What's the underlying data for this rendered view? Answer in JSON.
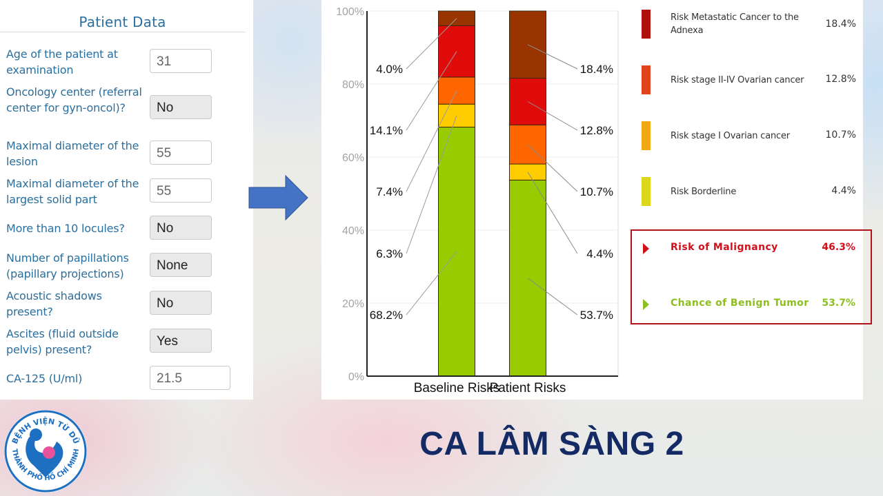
{
  "patient_data": {
    "title": "Patient Data",
    "fields": [
      {
        "label": "Age of the patient at examination",
        "value": "31",
        "kind": "input"
      },
      {
        "label": "Oncology center (referral center for gyn-oncol)?",
        "value": "No",
        "kind": "select"
      },
      {
        "label": "Maximal diameter of the lesion",
        "value": "55",
        "kind": "input"
      },
      {
        "label": "Maximal diameter of the largest solid part",
        "value": "55",
        "kind": "input"
      },
      {
        "label": "More than 10 locules?",
        "value": "No",
        "kind": "select"
      },
      {
        "label": "Number of papillations (papillary projections)",
        "value": "None",
        "kind": "select"
      },
      {
        "label": "Acoustic shadows present?",
        "value": "No",
        "kind": "select"
      },
      {
        "label": "Ascites (fluid outside pelvis) present?",
        "value": "Yes",
        "kind": "select"
      },
      {
        "label": "CA-125 (U/ml)",
        "value": "21.5",
        "kind": "input"
      }
    ]
  },
  "arrow": {
    "icon": "right-arrow-icon",
    "color": "#4472c4"
  },
  "chart_data": {
    "type": "bar",
    "stacked": true,
    "title": "",
    "xlabel": "",
    "ylabel": "",
    "ylim": [
      0,
      100
    ],
    "yticks": [
      "0%",
      "20%",
      "40%",
      "60%",
      "80%",
      "100%"
    ],
    "grid": true,
    "categories": [
      "Baseline Risks",
      "Patient Risks"
    ],
    "series": [
      {
        "name": "Benign",
        "color": "#99cc00",
        "values": [
          68.2,
          53.7
        ],
        "labels": [
          "68.2%",
          "53.7%"
        ]
      },
      {
        "name": "Risk Borderline",
        "color": "#ffcc00",
        "values": [
          6.3,
          4.4
        ],
        "labels": [
          "6.3%",
          "4.4%"
        ]
      },
      {
        "name": "Risk stage I Ovarian cancer",
        "color": "#ff6600",
        "values": [
          7.4,
          10.7
        ],
        "labels": [
          "7.4%",
          "10.7%"
        ]
      },
      {
        "name": "Risk stage II-IV Ovarian cancer",
        "color": "#e00b0b",
        "values": [
          14.1,
          12.8
        ],
        "labels": [
          "14.1%",
          "12.8%"
        ]
      },
      {
        "name": "Risk Metastatic Cancer to the Adnexa",
        "color": "#993300",
        "values": [
          4.0,
          18.4
        ],
        "labels": [
          "4.0%",
          "18.4%"
        ]
      }
    ]
  },
  "legend": {
    "items": [
      {
        "label": "Risk Metastatic Cancer to the Adnexa",
        "value": "18.4%",
        "color": "#b00f0f"
      },
      {
        "label": "Risk stage II-IV Ovarian cancer",
        "value": "12.8%",
        "color": "#e0441c"
      },
      {
        "label": "Risk stage I Ovarian cancer",
        "value": "10.7%",
        "color": "#f0a814"
      },
      {
        "label": "Risk Borderline",
        "value": "4.4%",
        "color": "#dcd719"
      }
    ]
  },
  "summary": {
    "malignancy": {
      "label": "Risk of Malignancy",
      "value": "46.3%",
      "color": "#d0101b"
    },
    "benign": {
      "label": "Chance of Benign Tumor",
      "value": "53.7%",
      "color": "#8dbf1e"
    },
    "border_color": "#b0121b"
  },
  "logo": {
    "text_top": "BỆNH VIỆN TỪ DŨ",
    "text_bottom": "THÀNH PHỐ HỒ CHÍ MINH",
    "color": "#1d6fc1"
  },
  "slide_title": "CA LÂM SÀNG 2"
}
